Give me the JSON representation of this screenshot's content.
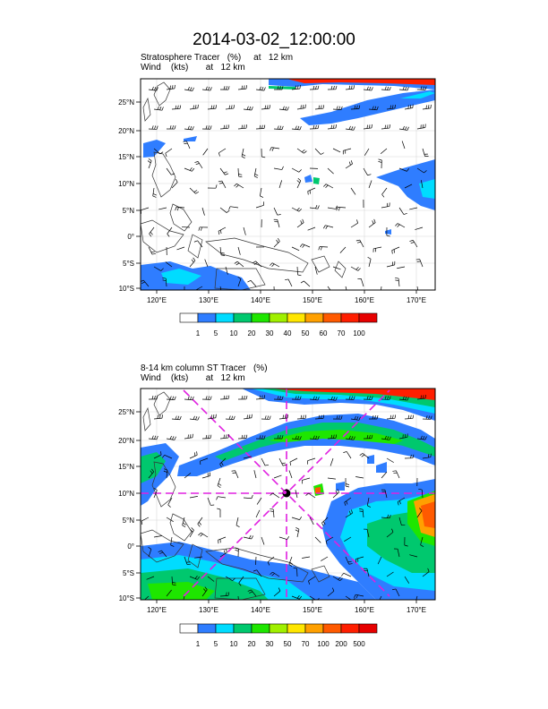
{
  "title": "2014-03-02_12:00:00",
  "panel1": {
    "line1": "Stratosphere Tracer   (%)     at   12 km",
    "line2": "Wind    (kts)       at   12 km"
  },
  "panel2": {
    "line1": "8-14 km column ST Tracer   (%)",
    "line2": "Wind    (kts)       at   12 km"
  },
  "lat_ticks": [
    "25°N",
    "20°N",
    "15°N",
    "10°N",
    "5°N",
    "0°",
    "5°S",
    "10°S"
  ],
  "lon_ticks": [
    "120°E",
    "130°E",
    "140°E",
    "150°E",
    "160°E",
    "170°E"
  ],
  "colorbar1": {
    "labels": [
      "1",
      "5",
      "10",
      "20",
      "30",
      "40",
      "50",
      "60",
      "70",
      "100"
    ],
    "colors": [
      "#ffffff",
      "#2f7dff",
      "#00dcff",
      "#00c86e",
      "#1ee600",
      "#a0f000",
      "#ffe600",
      "#ffa000",
      "#ff5a00",
      "#ff1e00",
      "#e60000"
    ]
  },
  "colorbar2": {
    "labels": [
      "1",
      "5",
      "10",
      "20",
      "30",
      "50",
      "70",
      "100",
      "200",
      "500"
    ],
    "colors": [
      "#ffffff",
      "#2f7dff",
      "#00dcff",
      "#00c86e",
      "#1ee600",
      "#a0f000",
      "#ffe600",
      "#ffa000",
      "#ff5a00",
      "#ff1e00",
      "#e60000"
    ]
  },
  "colors": {
    "magenta": "#e020e0",
    "frame": "#000000"
  }
}
